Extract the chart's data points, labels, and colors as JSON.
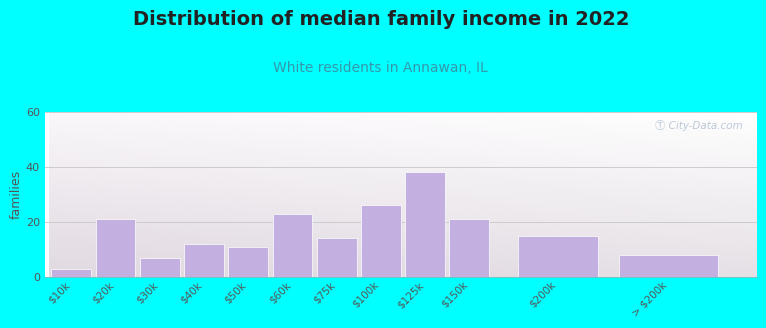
{
  "title": "Distribution of median family income in 2022",
  "subtitle": "White residents in Annawan, IL",
  "categories": [
    "$10k",
    "$20k",
    "$30k",
    "$40k",
    "$50k",
    "$60k",
    "$75k",
    "$100k",
    "$125k",
    "$150k",
    "$200k",
    "> $200k"
  ],
  "values": [
    3,
    21,
    7,
    12,
    11,
    23,
    14,
    26,
    38,
    21,
    15,
    8
  ],
  "bar_color": "#c4b0e0",
  "bar_edge_color": "#ffffff",
  "ylabel": "families",
  "ylim": [
    0,
    60
  ],
  "yticks": [
    0,
    20,
    40,
    60
  ],
  "background_outer": "#00ffff",
  "title_fontsize": 14,
  "subtitle_fontsize": 10,
  "subtitle_color": "#3399aa",
  "grid_color": "#cccccc",
  "watermark_text": "Ⓣ City-Data.com",
  "title_fontweight": "bold",
  "title_color": "#222222",
  "tick_label_color": "#555555",
  "ylabel_color": "#555555"
}
